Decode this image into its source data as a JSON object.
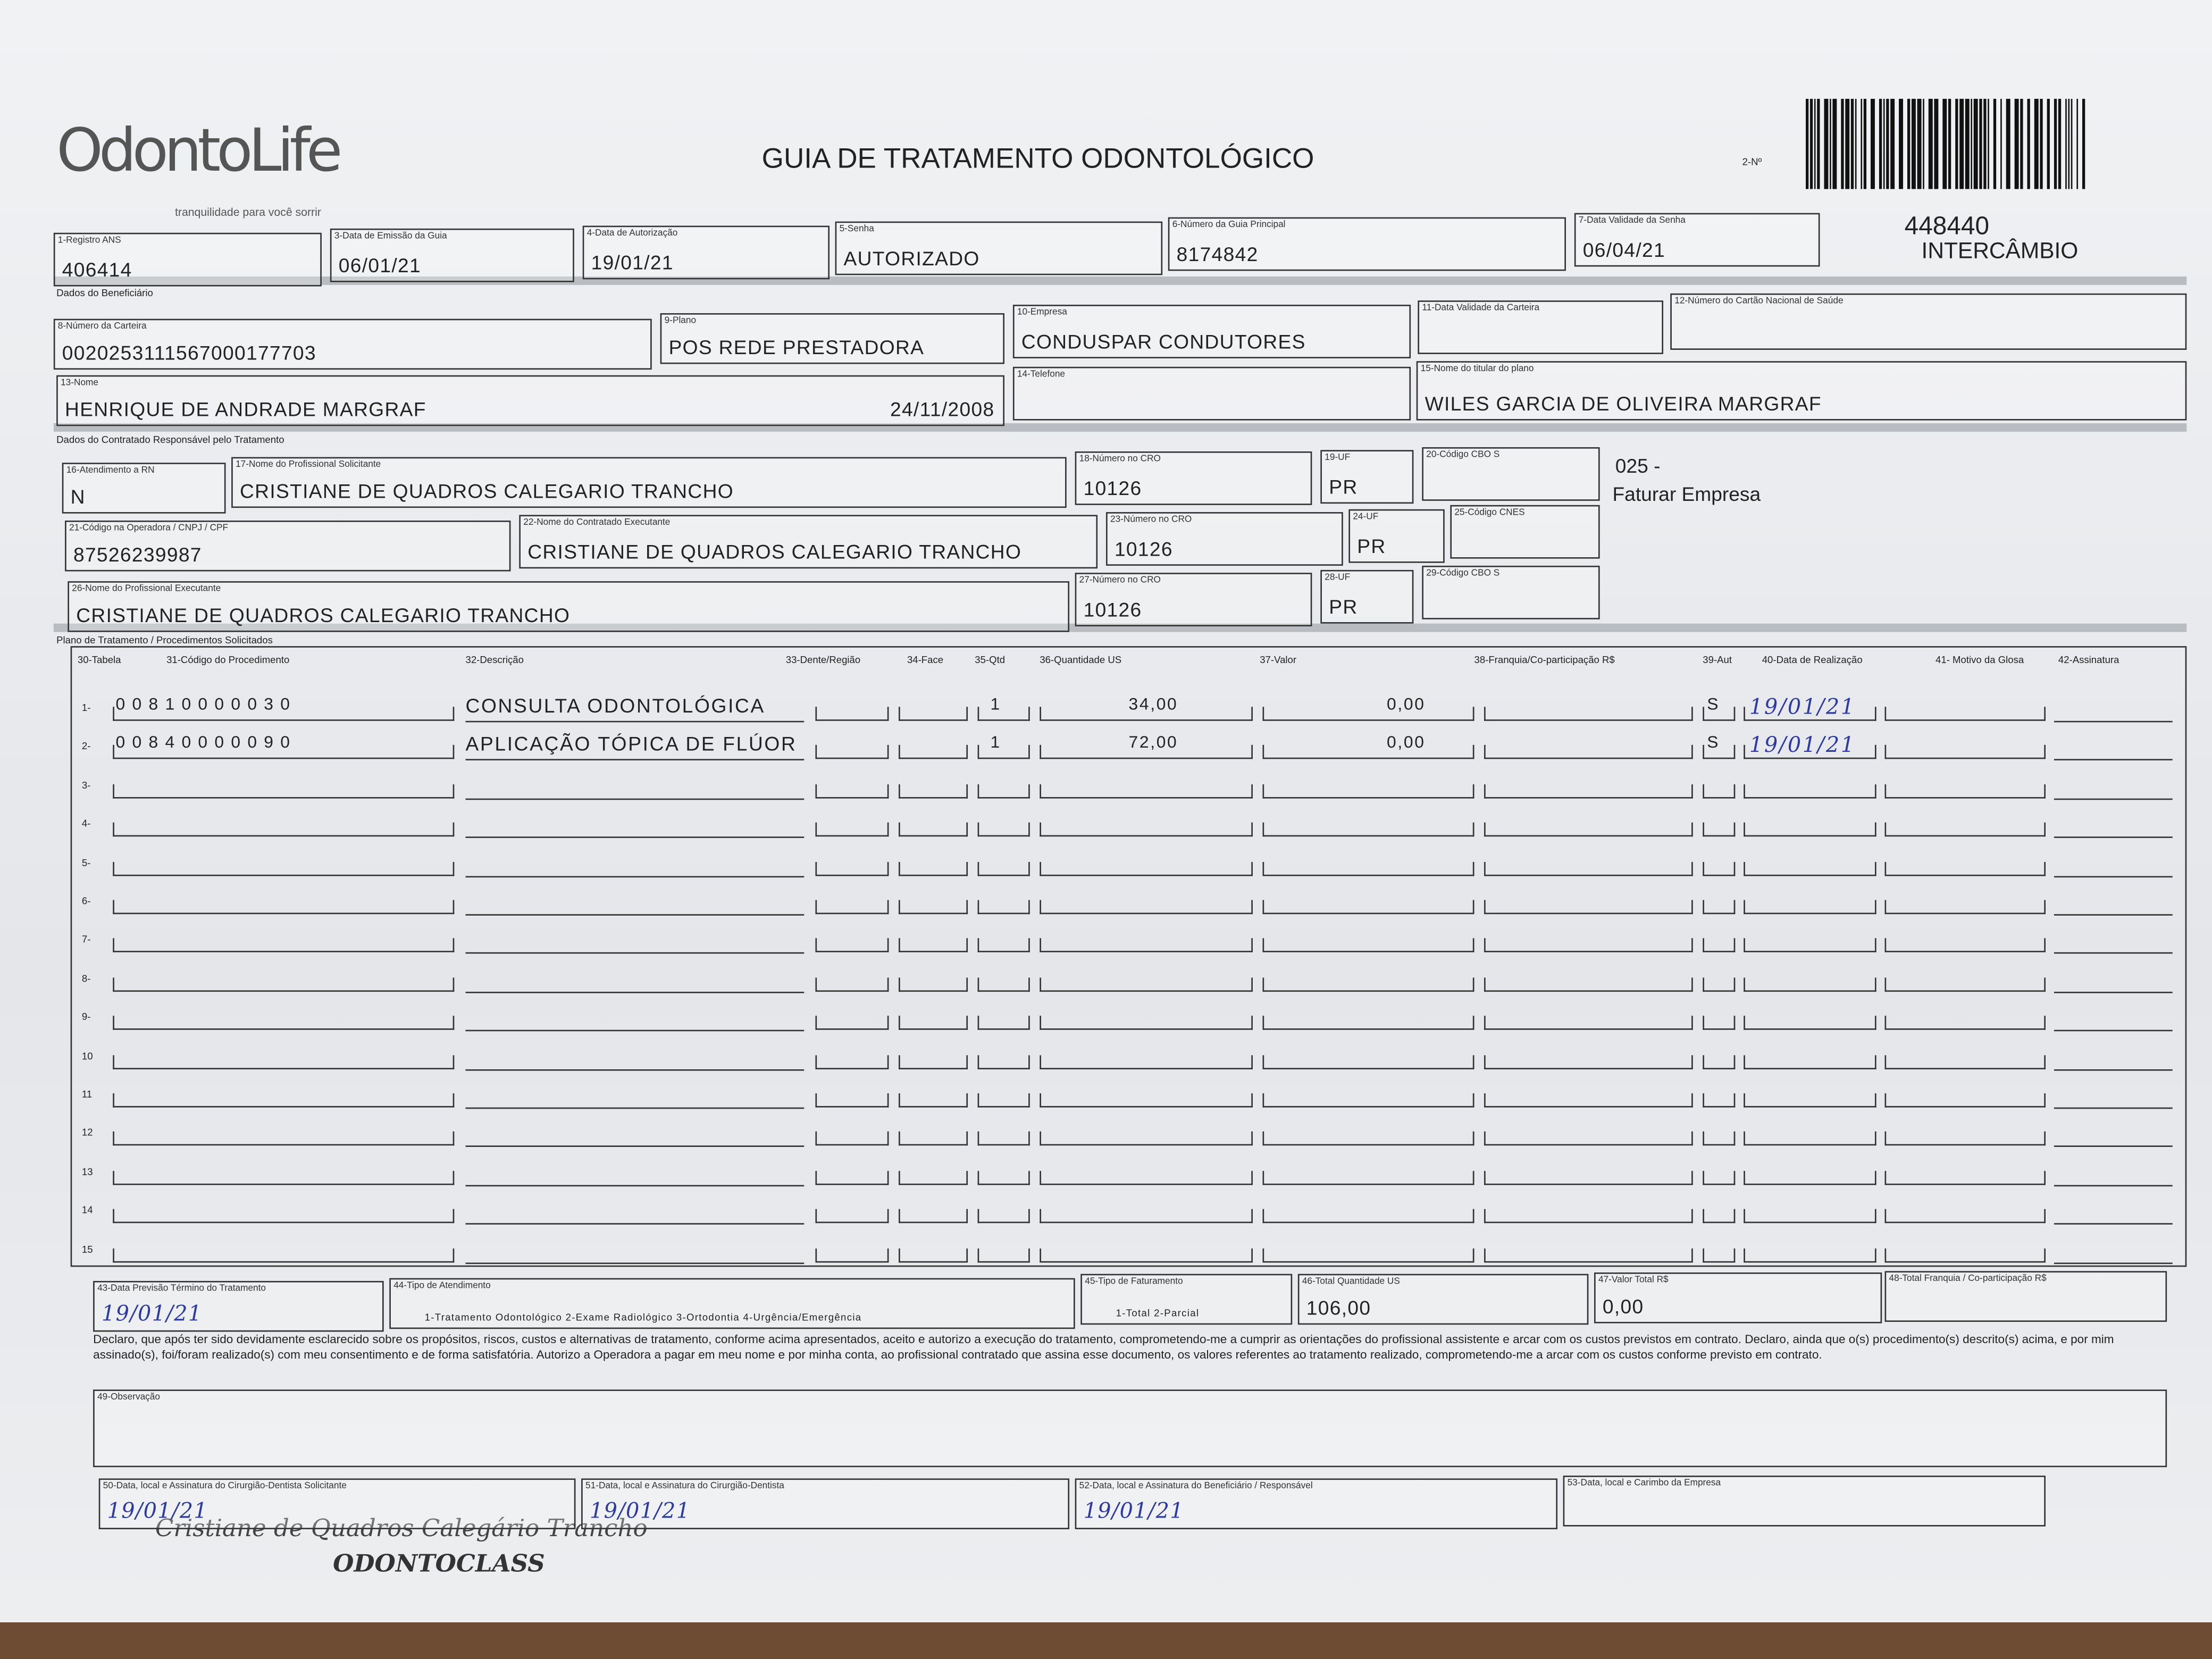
{
  "header": {
    "logo": "OdontoLife",
    "tagline": "tranquilidade para você sorrir",
    "title": "GUIA DE TRATAMENTO ODONTOLÓGICO",
    "number_label": "2-Nº",
    "guide_number": "448440",
    "guide_type": "INTERCÂMBIO"
  },
  "sections": [
    "Dados do Beneficiário",
    "Dados do Contratado Responsável pelo Tratamento",
    "Plano de Tratamento / Procedimentos Solicitados"
  ],
  "fields": [
    {
      "label": "1-Registro ANS",
      "value": "406414"
    },
    {
      "label": "3-Data de Emissão da Guia",
      "value": "06/01/21"
    },
    {
      "label": "4-Data de Autorização",
      "value": "19/01/21"
    },
    {
      "label": "5-Senha",
      "value": "AUTORIZADO"
    },
    {
      "label": "6-Número da Guia Principal",
      "value": "8174842"
    },
    {
      "label": "7-Data Validade da Senha",
      "value": "06/04/21"
    },
    {
      "label": "8-Número da Carteira",
      "value": "0020253111567000177703"
    },
    {
      "label": "9-Plano",
      "value": "POS REDE PRESTADORA"
    },
    {
      "label": "10-Empresa",
      "value": "CONDUSPAR CONDUTORES"
    },
    {
      "label": "11-Data Validade da Carteira"
    },
    {
      "label": "12-Número do Cartão Nacional de Saúde"
    },
    {
      "label": "13-Nome",
      "value": "HENRIQUE DE ANDRADE MARGRAF",
      "extra": "24/11/2008"
    },
    {
      "label": "14-Telefone"
    },
    {
      "label": "15-Nome do titular do plano",
      "value": "WILES GARCIA DE OLIVEIRA MARGRAF"
    },
    {
      "label": "16-Atendimento a RN",
      "value": "N"
    },
    {
      "label": "17-Nome do Profissional Solicitante",
      "value": "CRISTIANE DE QUADROS CALEGARIO TRANCHO"
    },
    {
      "label": "18-Número no CRO",
      "value": "10126"
    },
    {
      "label": "19-UF",
      "value": "PR"
    },
    {
      "label": "20-Código CBO S"
    },
    {
      "label": "21-Código na Operadora / CNPJ / CPF",
      "value": "87526239987"
    },
    {
      "label": "22-Nome do Contratado Executante",
      "value": "CRISTIANE DE QUADROS CALEGARIO TRANCHO"
    },
    {
      "label": "23-Número no CRO",
      "value": "10126"
    },
    {
      "label": "24-UF",
      "value": "PR"
    },
    {
      "label": "25-Código CNES"
    },
    {
      "label": "26-Nome do Profissional Executante",
      "value": "CRISTIANE DE QUADROS CALEGARIO TRANCHO"
    },
    {
      "label": "27-Número no CRO",
      "value": "10126"
    },
    {
      "label": "28-UF",
      "value": "PR"
    },
    {
      "label": "29-Código CBO S"
    },
    {
      "label": "43-Data Previsão Término do Tratamento",
      "value": "19/01/21"
    },
    {
      "label": "44-Tipo de Atendimento",
      "value": "1-Tratamento Odontológico 2-Exame Radiológico 3-Ortodontia 4-Urgência/Emergência"
    },
    {
      "label": "45-Tipo de Faturamento",
      "value": "1-Total 2-Parcial"
    },
    {
      "label": "46-Total Quantidade US",
      "value": "106,00"
    },
    {
      "label": "47-Valor Total R$",
      "value": "0,00"
    },
    {
      "label": "48-Total Franquia / Co-participação R$"
    },
    {
      "label": "50-Data, local e Assinatura do Cirurgião-Dentista Solicitante",
      "value": "19/01/21"
    },
    {
      "label": "51-Data, local e Assinatura do Cirurgião-Dentista",
      "value": "19/01/21"
    },
    {
      "label": "52-Data, local e Assinatura do Beneficiário / Responsável",
      "value": "19/01/21"
    },
    {
      "label": "53-Data, local e Carimbo da Empresa"
    },
    {
      "label": "49-Observação"
    }
  ],
  "procedures": {
    "columns": [
      "30-Tabela",
      "31-Código do Procedimento",
      "32-Descrição",
      "33-Dente/Região",
      "34-Face",
      "35-Qtd",
      "36-Quantidade US",
      "37-Valor",
      "38-Franquia/Co-participação R$",
      "39-Aut",
      "40-Data de Realização",
      "41- Motivo da Glosa",
      "42-Assinatura"
    ],
    "rows": [
      {
        "number": "1-",
        "code": "00810000030",
        "description": "CONSULTA ODONTOLÓGICA",
        "quantity": "1",
        "us": "34,00",
        "value": "0,00",
        "authorized": "S",
        "date": "19/01/21"
      },
      {
        "number": "2-",
        "code": "00840000090",
        "description": "APLICAÇÃO TÓPICA DE FLÚOR",
        "quantity": "1",
        "us": "72,00",
        "value": "0,00",
        "authorized": "S",
        "date": "19/01/21"
      },
      {
        "number": "3-"
      },
      {
        "number": "4-"
      },
      {
        "number": "5-"
      },
      {
        "number": "6-"
      },
      {
        "number": "7-"
      },
      {
        "number": "8-"
      },
      {
        "number": "9-"
      },
      {
        "number": "10"
      },
      {
        "number": "11"
      },
      {
        "number": "12"
      },
      {
        "number": "13"
      },
      {
        "number": "14"
      },
      {
        "number": "15"
      }
    ]
  },
  "declaration": "Declaro, que após ter sido devidamente esclarecido sobre os propósitos, riscos, custos e alternativas de tratamento, conforme acima apresentados, aceito e autorizo a execução do tratamento, comprometendo-me a cumprir as orientações do profissional assistente e arcar com os custos previstos em contrato. Declaro, ainda que o(s) procedimento(s) descrito(s) acima, e por mim assinado(s), foi/foram realizado(s) com meu consentimento e de forma satisfatória. Autorizo a Operadora a pagar em meu nome e por minha conta, ao profissional contratado que assina esse documento, os valores referentes ao tratamento realizado, comprometendo-me a arcar com os custos conforme previsto em contrato.",
  "annotations": {
    "code": "025 -",
    "billing": "Faturar Empresa",
    "stamp_name": "Cristiane de Quadros Calegário Trancho",
    "stamp_clinic": "ODONTOCLASS"
  }
}
